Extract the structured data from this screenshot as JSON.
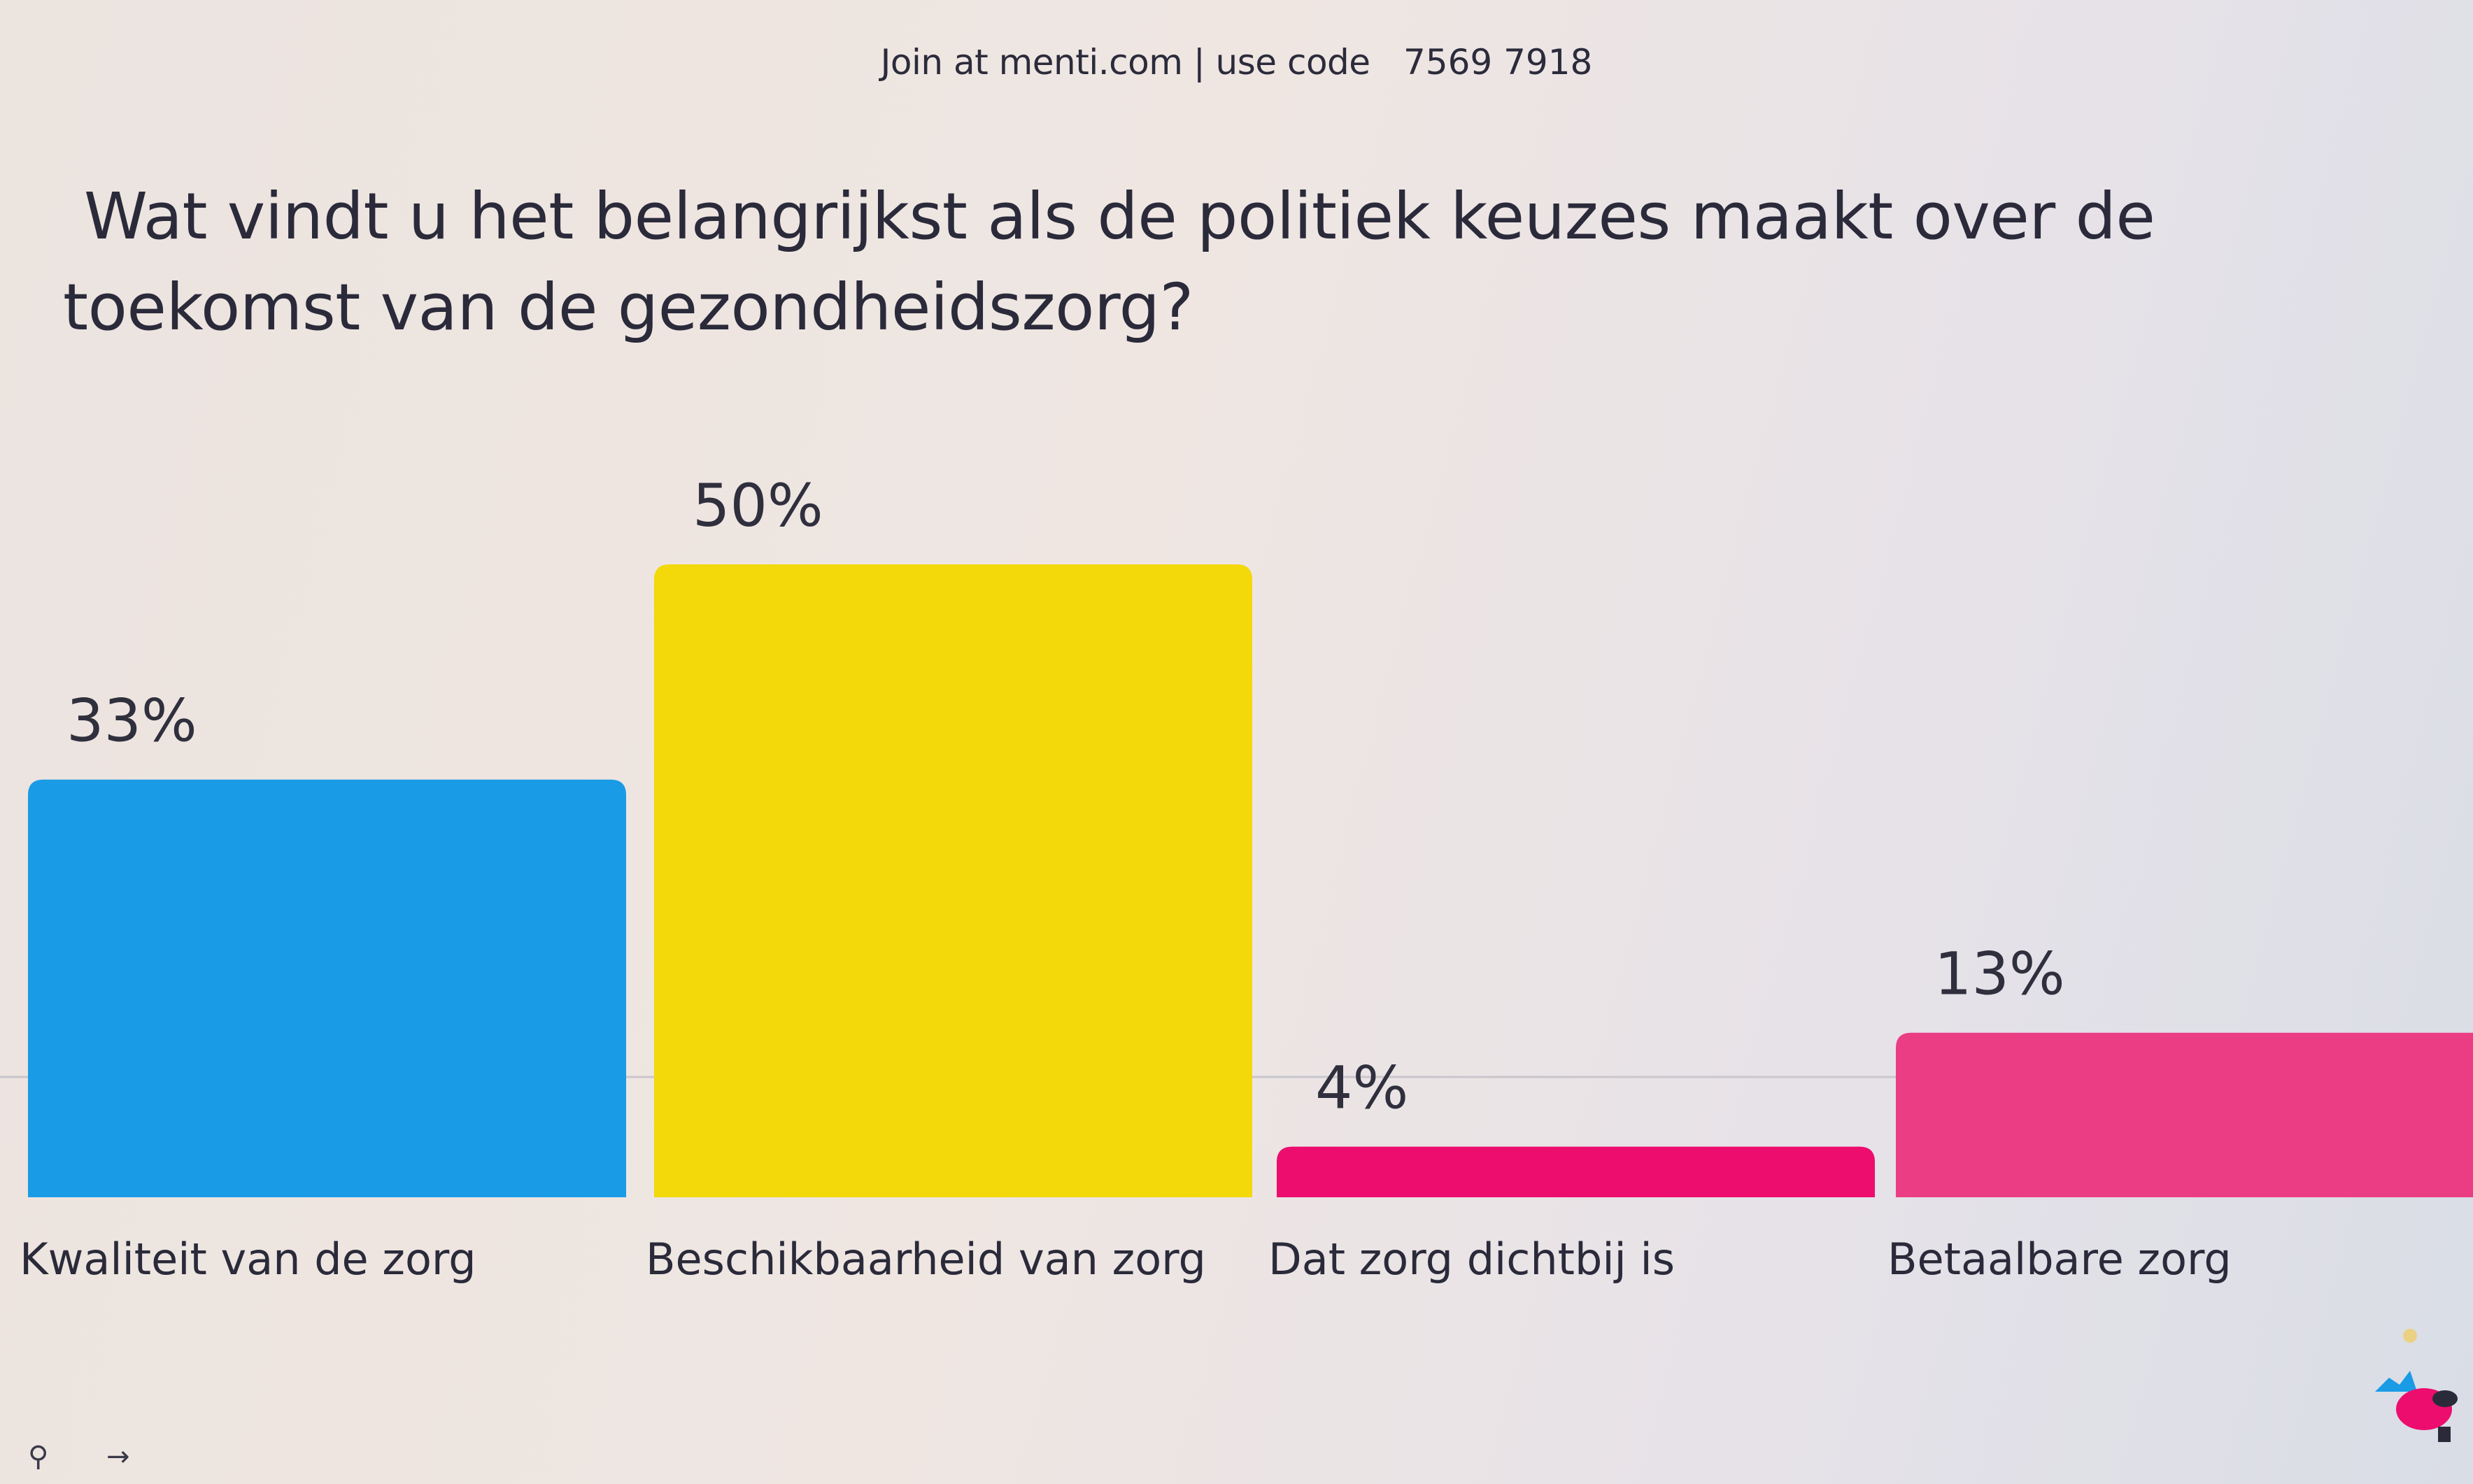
{
  "header": {
    "join_text": "Join at menti.com | use code",
    "code": "7569 7918"
  },
  "question": "Wat vindt u het belangrijkst als de politiek keuzes maakt over de toekomst van de gezondheidszorg?",
  "chart_data": {
    "type": "bar",
    "title": "Wat vindt u het belangrijkst als de politiek keuzes maakt over de toekomst van de gezondheidszorg?",
    "categories": [
      "Kwaliteit van de zorg",
      "Beschikbaarheid van zorg",
      "Dat zorg dichtbij is",
      "Betaalbare zorg"
    ],
    "values": [
      33,
      50,
      4,
      13
    ],
    "value_labels": [
      "33%",
      "50%",
      "4%",
      "13%"
    ],
    "colors": [
      "#1a9be6",
      "#f3d80a",
      "#ec0d6e",
      "#eb3d84"
    ],
    "ylim": [
      0,
      50
    ],
    "xlabel": "",
    "ylabel": "",
    "grid": false,
    "legend": "none"
  },
  "footer": {
    "icons": [
      "pin-icon",
      "arrow-right-icon"
    ]
  }
}
